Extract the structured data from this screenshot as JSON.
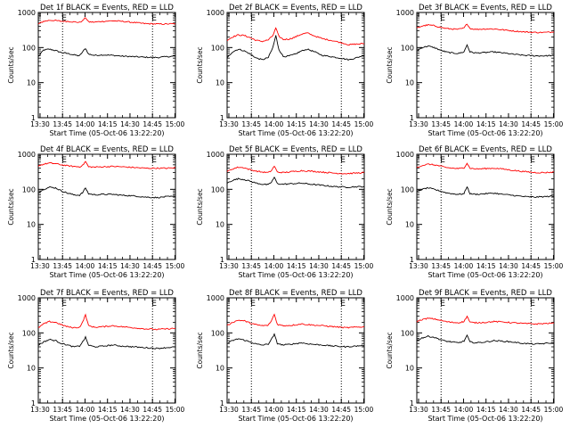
{
  "figure": {
    "xlabel": "Start Time (05-Oct-06 13:22:20)",
    "ylabel": "Counts/sec",
    "x_tick_labels": [
      "13:30",
      "13:45",
      "14:00",
      "14:15",
      "14:30",
      "14:45",
      "15:00"
    ],
    "y_tick_labels": [
      "1",
      "10",
      "100",
      "1000"
    ],
    "marker_labels": [
      "E",
      "E"
    ],
    "colors": {
      "events": "#000000",
      "lld": "#ff0000",
      "markers": "#000000"
    }
  },
  "chart_data": [
    {
      "type": "line",
      "title": "Det 1f BLACK = Events, RED = LLD",
      "x_unit": "minutes after 13:22:20",
      "xlim": [
        6.5,
        98
      ],
      "ylim": [
        1,
        1000
      ],
      "yscale": "log",
      "markers_x": [
        22.7,
        82.7
      ],
      "series": [
        {
          "key": "events",
          "x": [
            6.5,
            10,
            14,
            18,
            22,
            26,
            30,
            34,
            36,
            38,
            40,
            44,
            50,
            56,
            62,
            70,
            78,
            86,
            92,
            98
          ],
          "y": [
            55,
            85,
            90,
            82,
            72,
            68,
            62,
            58,
            75,
            95,
            65,
            60,
            62,
            60,
            57,
            55,
            53,
            52,
            55,
            57
          ]
        },
        {
          "key": "lld",
          "x": [
            6.5,
            10,
            14,
            18,
            22,
            26,
            30,
            34,
            36,
            38,
            40,
            44,
            50,
            56,
            62,
            70,
            78,
            86,
            92,
            98
          ],
          "y": [
            470,
            560,
            600,
            590,
            560,
            560,
            540,
            520,
            580,
            720,
            540,
            530,
            560,
            580,
            560,
            520,
            480,
            470,
            470,
            480
          ]
        }
      ]
    },
    {
      "type": "line",
      "title": "Det 2f BLACK = Events, RED = LLD",
      "x_unit": "minutes after 13:22:20",
      "xlim": [
        6.5,
        98
      ],
      "ylim": [
        1,
        1000
      ],
      "yscale": "log",
      "markers_x": [
        22.7,
        82.7
      ],
      "series": [
        {
          "key": "events",
          "x": [
            6.5,
            10,
            14,
            18,
            22,
            26,
            30,
            34,
            37,
            39,
            41,
            44,
            48,
            52,
            56,
            60,
            64,
            70,
            76,
            82,
            88,
            92,
            98
          ],
          "y": [
            50,
            75,
            90,
            80,
            65,
            50,
            45,
            52,
            100,
            220,
            90,
            55,
            58,
            65,
            80,
            90,
            78,
            60,
            55,
            50,
            45,
            50,
            60
          ]
        },
        {
          "key": "lld",
          "x": [
            6.5,
            10,
            14,
            18,
            22,
            26,
            30,
            34,
            37,
            39,
            41,
            44,
            48,
            52,
            56,
            60,
            64,
            70,
            76,
            82,
            88,
            92,
            98
          ],
          "y": [
            160,
            200,
            230,
            220,
            190,
            160,
            150,
            165,
            220,
            360,
            210,
            170,
            175,
            200,
            240,
            260,
            220,
            180,
            160,
            140,
            120,
            125,
            130
          ]
        }
      ]
    },
    {
      "type": "line",
      "title": "Det 3f BLACK = Events, RED = LLD",
      "x_unit": "minutes after 13:22:20",
      "xlim": [
        6.5,
        98
      ],
      "ylim": [
        1,
        1000
      ],
      "yscale": "log",
      "markers_x": [
        22.7,
        82.7
      ],
      "series": [
        {
          "key": "events",
          "x": [
            6.5,
            10,
            14,
            18,
            22,
            26,
            30,
            34,
            38,
            40,
            42,
            46,
            52,
            58,
            64,
            70,
            78,
            86,
            92,
            98
          ],
          "y": [
            80,
            100,
            110,
            100,
            85,
            75,
            70,
            68,
            75,
            120,
            75,
            70,
            72,
            75,
            70,
            65,
            60,
            58,
            58,
            60
          ]
        },
        {
          "key": "lld",
          "x": [
            6.5,
            10,
            14,
            18,
            22,
            26,
            30,
            34,
            38,
            40,
            42,
            46,
            52,
            58,
            64,
            70,
            78,
            86,
            92,
            98
          ],
          "y": [
            360,
            410,
            440,
            420,
            380,
            350,
            340,
            330,
            360,
            480,
            350,
            330,
            340,
            340,
            320,
            300,
            280,
            270,
            270,
            280
          ]
        }
      ]
    },
    {
      "type": "line",
      "title": "Det 4f BLACK = Events, RED = LLD",
      "x_unit": "minutes after 13:22:20",
      "xlim": [
        6.5,
        98
      ],
      "ylim": [
        1,
        1000
      ],
      "yscale": "log",
      "markers_x": [
        22.7,
        82.7
      ],
      "series": [
        {
          "key": "events",
          "x": [
            6.5,
            10,
            14,
            18,
            22,
            26,
            30,
            34,
            36,
            38,
            40,
            44,
            50,
            56,
            62,
            70,
            78,
            86,
            92,
            98
          ],
          "y": [
            80,
            100,
            115,
            110,
            90,
            78,
            70,
            68,
            80,
            110,
            75,
            70,
            72,
            72,
            68,
            65,
            60,
            58,
            62,
            62
          ]
        },
        {
          "key": "lld",
          "x": [
            6.5,
            10,
            14,
            18,
            22,
            26,
            30,
            34,
            36,
            38,
            40,
            44,
            50,
            56,
            62,
            70,
            78,
            86,
            92,
            98
          ],
          "y": [
            470,
            520,
            560,
            540,
            500,
            470,
            450,
            440,
            480,
            620,
            440,
            430,
            440,
            450,
            440,
            420,
            400,
            400,
            400,
            410
          ]
        }
      ]
    },
    {
      "type": "line",
      "title": "Det 5f BLACK = Events, RED = LLD",
      "x_unit": "minutes after 13:22:20",
      "xlim": [
        6.5,
        98
      ],
      "ylim": [
        1,
        1000
      ],
      "yscale": "log",
      "markers_x": [
        22.7,
        82.7
      ],
      "series": [
        {
          "key": "events",
          "x": [
            6.5,
            10,
            14,
            18,
            22,
            26,
            30,
            34,
            36,
            38,
            40,
            44,
            50,
            56,
            62,
            70,
            78,
            86,
            92,
            98
          ],
          "y": [
            150,
            180,
            200,
            190,
            170,
            150,
            140,
            135,
            160,
            220,
            145,
            140,
            145,
            150,
            140,
            130,
            120,
            115,
            118,
            120
          ]
        },
        {
          "key": "lld",
          "x": [
            6.5,
            10,
            14,
            18,
            22,
            26,
            30,
            34,
            36,
            38,
            40,
            44,
            50,
            56,
            62,
            70,
            78,
            86,
            92,
            98
          ],
          "y": [
            320,
            380,
            430,
            410,
            360,
            330,
            310,
            300,
            340,
            460,
            310,
            300,
            320,
            340,
            330,
            310,
            290,
            280,
            290,
            300
          ]
        }
      ]
    },
    {
      "type": "line",
      "title": "Det 6f BLACK = Events, RED = LLD",
      "x_unit": "minutes after 13:22:20",
      "xlim": [
        6.5,
        98
      ],
      "ylim": [
        1,
        1000
      ],
      "yscale": "log",
      "markers_x": [
        22.7,
        82.7
      ],
      "series": [
        {
          "key": "events",
          "x": [
            6.5,
            10,
            14,
            18,
            22,
            26,
            30,
            34,
            38,
            40,
            42,
            46,
            52,
            58,
            64,
            70,
            78,
            86,
            92,
            98
          ],
          "y": [
            85,
            100,
            110,
            100,
            90,
            80,
            75,
            72,
            75,
            120,
            75,
            72,
            75,
            78,
            72,
            68,
            62,
            60,
            62,
            64
          ]
        },
        {
          "key": "lld",
          "x": [
            6.5,
            10,
            14,
            18,
            22,
            26,
            30,
            34,
            38,
            40,
            42,
            46,
            52,
            58,
            64,
            70,
            78,
            86,
            92,
            98
          ],
          "y": [
            420,
            480,
            520,
            500,
            460,
            420,
            400,
            390,
            410,
            560,
            400,
            380,
            390,
            400,
            380,
            350,
            320,
            300,
            300,
            310
          ]
        }
      ]
    },
    {
      "type": "line",
      "title": "Det 7f BLACK = Events, RED = LLD",
      "x_unit": "minutes after 13:22:20",
      "xlim": [
        6.5,
        98
      ],
      "ylim": [
        1,
        1000
      ],
      "yscale": "log",
      "markers_x": [
        22.7,
        82.7
      ],
      "series": [
        {
          "key": "events",
          "x": [
            6.5,
            10,
            14,
            18,
            22,
            26,
            30,
            34,
            36,
            38,
            40,
            44,
            50,
            56,
            62,
            70,
            78,
            86,
            92,
            98
          ],
          "y": [
            45,
            55,
            65,
            60,
            50,
            45,
            40,
            42,
            55,
            75,
            45,
            40,
            42,
            45,
            42,
            40,
            38,
            36,
            38,
            40
          ]
        },
        {
          "key": "lld",
          "x": [
            6.5,
            10,
            14,
            18,
            22,
            26,
            30,
            34,
            36,
            38,
            40,
            44,
            50,
            56,
            62,
            70,
            78,
            86,
            92,
            98
          ],
          "y": [
            140,
            180,
            210,
            200,
            170,
            150,
            140,
            145,
            200,
            330,
            160,
            145,
            150,
            160,
            150,
            140,
            130,
            125,
            130,
            135
          ]
        }
      ]
    },
    {
      "type": "line",
      "title": "Det 8f BLACK = Events, RED = LLD",
      "x_unit": "minutes after 13:22:20",
      "xlim": [
        6.5,
        98
      ],
      "ylim": [
        1,
        1000
      ],
      "yscale": "log",
      "markers_x": [
        22.7,
        82.7
      ],
      "series": [
        {
          "key": "events",
          "x": [
            6.5,
            10,
            14,
            18,
            22,
            26,
            30,
            34,
            36,
            38,
            40,
            44,
            50,
            56,
            62,
            70,
            78,
            86,
            92,
            98
          ],
          "y": [
            50,
            60,
            68,
            62,
            55,
            48,
            45,
            48,
            65,
            90,
            50,
            45,
            48,
            52,
            48,
            45,
            42,
            40,
            42,
            44
          ]
        },
        {
          "key": "lld",
          "x": [
            6.5,
            10,
            14,
            18,
            22,
            26,
            30,
            34,
            36,
            38,
            40,
            44,
            50,
            56,
            62,
            70,
            78,
            86,
            92,
            98
          ],
          "y": [
            160,
            200,
            230,
            220,
            190,
            170,
            160,
            165,
            220,
            340,
            175,
            160,
            165,
            180,
            170,
            160,
            150,
            140,
            145,
            150
          ]
        }
      ]
    },
    {
      "type": "line",
      "title": "Det 9f BLACK = Events, RED = LLD",
      "x_unit": "minutes after 13:22:20",
      "xlim": [
        6.5,
        98
      ],
      "ylim": [
        1,
        1000
      ],
      "yscale": "log",
      "markers_x": [
        22.7,
        82.7
      ],
      "series": [
        {
          "key": "events",
          "x": [
            6.5,
            10,
            14,
            18,
            22,
            26,
            30,
            34,
            38,
            40,
            42,
            46,
            52,
            58,
            64,
            70,
            78,
            86,
            92,
            98
          ],
          "y": [
            60,
            72,
            80,
            75,
            65,
            58,
            55,
            52,
            58,
            85,
            55,
            52,
            55,
            60,
            58,
            55,
            50,
            48,
            50,
            52
          ]
        },
        {
          "key": "lld",
          "x": [
            6.5,
            10,
            14,
            18,
            22,
            26,
            30,
            34,
            38,
            40,
            42,
            46,
            52,
            58,
            64,
            70,
            78,
            86,
            92,
            98
          ],
          "y": [
            210,
            240,
            260,
            250,
            230,
            210,
            200,
            195,
            210,
            300,
            200,
            195,
            200,
            210,
            205,
            195,
            185,
            180,
            185,
            190
          ]
        }
      ]
    }
  ]
}
